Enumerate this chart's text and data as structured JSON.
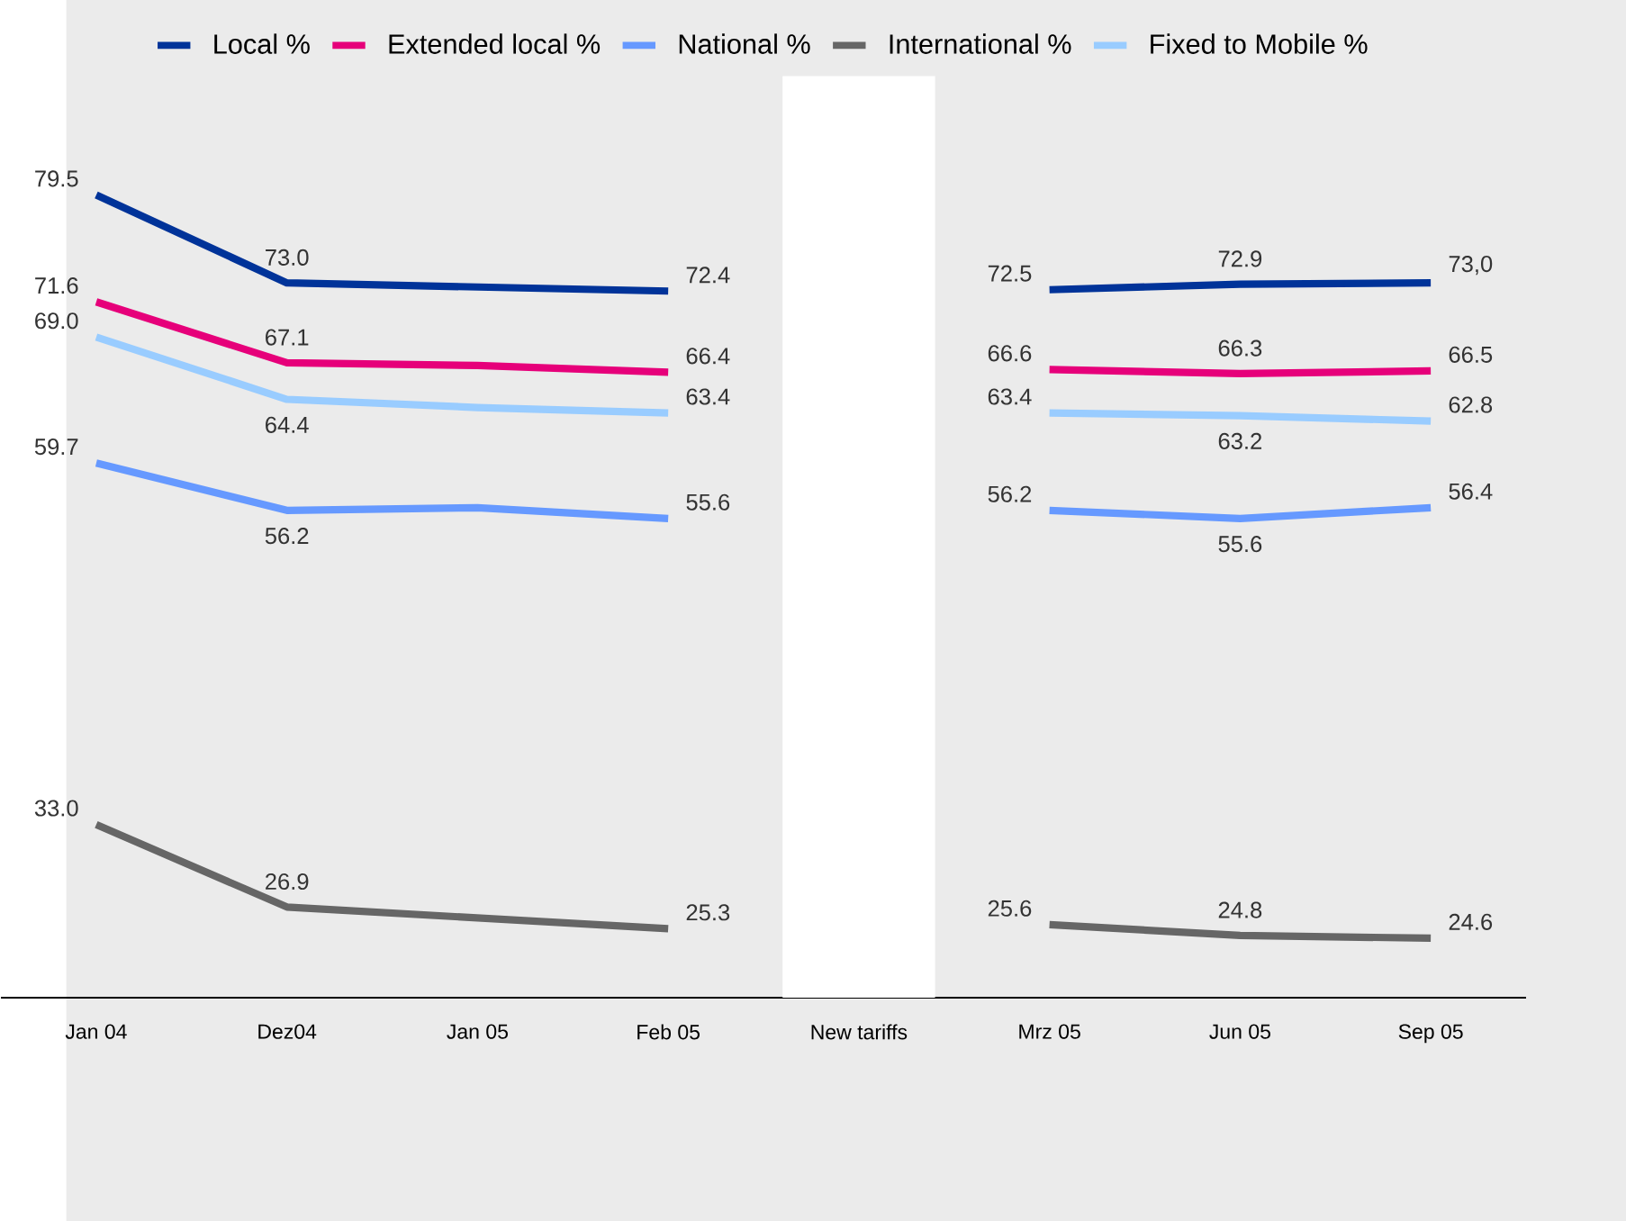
{
  "chart_data": {
    "type": "line",
    "categories": [
      "Jan 04",
      "Dez04",
      "Jan 05",
      "Feb 05",
      "New tariffs",
      "Mrz 05",
      "Jun 05",
      "Sep 05"
    ],
    "series": [
      {
        "name": "Local %",
        "color": "#003399",
        "values": [
          79.5,
          73.0,
          72.7,
          72.4,
          null,
          72.5,
          72.9,
          73.0
        ],
        "value_labels": [
          "79.5",
          "73.0",
          null,
          "72.4",
          null,
          "72.5",
          "72.9",
          "73,0"
        ]
      },
      {
        "name": "Extended local %",
        "color": "#e6007a",
        "values": [
          71.6,
          67.1,
          66.9,
          66.4,
          null,
          66.6,
          66.3,
          66.5
        ],
        "value_labels": [
          "71.6",
          "67.1",
          null,
          "66.4",
          null,
          "66.6",
          "66.3",
          "66.5"
        ]
      },
      {
        "name": "National %",
        "color": "#6699ff",
        "values": [
          59.7,
          56.2,
          56.4,
          55.6,
          null,
          56.2,
          55.6,
          56.4
        ],
        "value_labels": [
          "59.7",
          "56.2",
          null,
          "55.6",
          null,
          "56.2",
          "55.6",
          "56.4"
        ]
      },
      {
        "name": "International %",
        "color": "#666666",
        "values": [
          33.0,
          26.9,
          26.1,
          25.3,
          null,
          25.6,
          24.8,
          24.6
        ],
        "value_labels": [
          "33.0",
          "26.9",
          null,
          "25.3",
          null,
          "25.6",
          "24.8",
          "24.6"
        ]
      },
      {
        "name": "Fixed to Mobile %",
        "color": "#99ccff",
        "values": [
          69.0,
          64.4,
          63.8,
          63.4,
          null,
          63.4,
          63.2,
          62.8
        ],
        "value_labels": [
          "69.0",
          "64.4",
          null,
          "63.4",
          null,
          "63.4",
          "63.2",
          "62.8"
        ]
      }
    ],
    "bands": [
      {
        "axis": "x",
        "from": "New tariffs",
        "to": "New tariffs",
        "color": "#ffffff"
      }
    ],
    "legend": "top",
    "grid": false,
    "marker": "none",
    "line_style": "solid"
  }
}
